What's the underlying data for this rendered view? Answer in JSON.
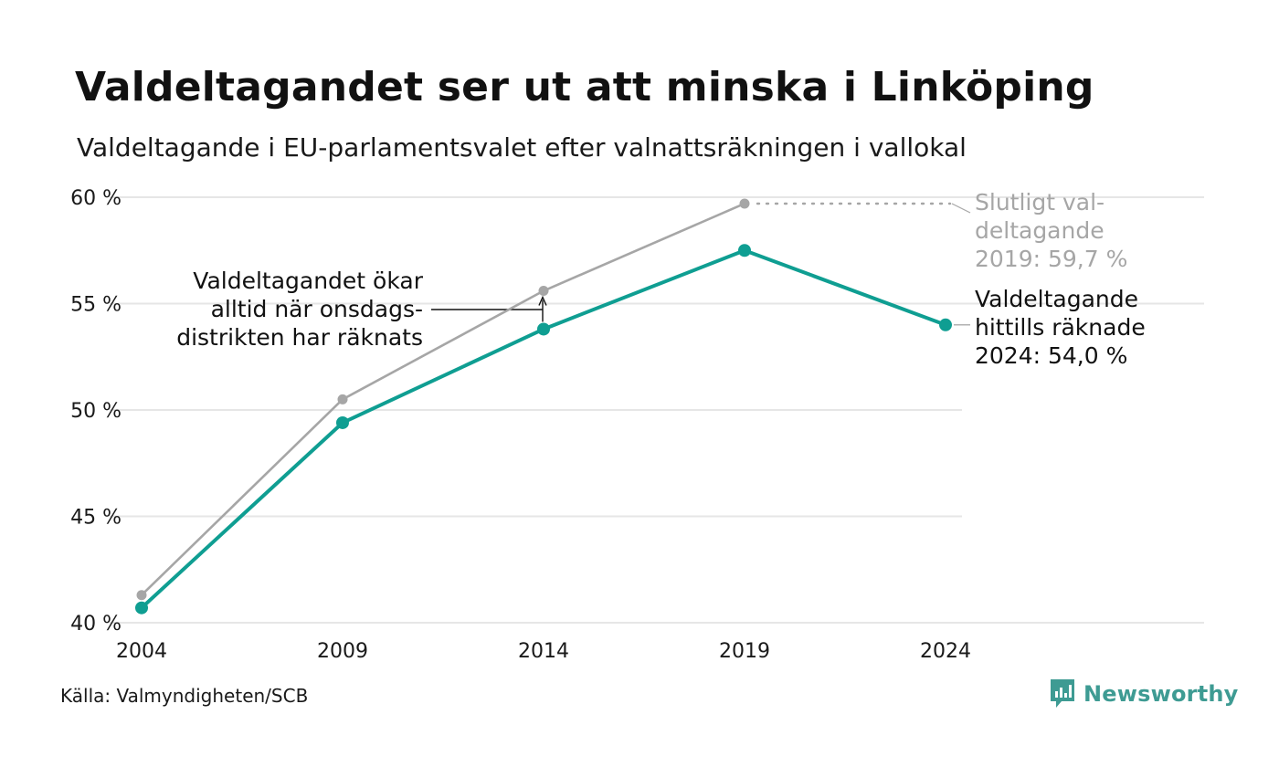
{
  "title": "Valdeltagandet ser ut att minska i Linköping",
  "subtitle": "Valdeltagande i EU-parlamentsvalet efter valnattsräkningen i vallokal",
  "source": "Källa: Valmyndigheten/SCB",
  "brand": "Newsworthy",
  "colors": {
    "final": "#a6a6a6",
    "counted": "#0f9e92",
    "grid": "#e6e6e6",
    "brand": "#3e9b93"
  },
  "chart_data": {
    "type": "line",
    "x": [
      2004,
      2009,
      2014,
      2019,
      2024
    ],
    "series": [
      {
        "key": "final",
        "values": [
          41.3,
          50.5,
          55.6,
          59.7,
          null
        ]
      },
      {
        "key": "counted",
        "values": [
          40.7,
          49.4,
          53.8,
          57.5,
          54.0
        ]
      }
    ],
    "ylim": [
      40,
      60
    ],
    "yticks": [
      40,
      45,
      50,
      55,
      60
    ],
    "ytick_labels": [
      "40 %",
      "45 %",
      "50 %",
      "55 %",
      "60 %"
    ],
    "xtick_labels": [
      "2004",
      "2009",
      "2014",
      "2019",
      "2024"
    ],
    "grid": true,
    "annotations": {
      "final_2019": [
        "Slutligt val-",
        "deltagande",
        "2019: 59,7 %"
      ],
      "counted_2024": [
        "Valdeltagande",
        "hittills räknade",
        "2024: 54,0 %"
      ],
      "wednesday": [
        "Valdeltagandet ökar",
        "alltid när onsdags-",
        "distrikten har räknats"
      ]
    }
  }
}
